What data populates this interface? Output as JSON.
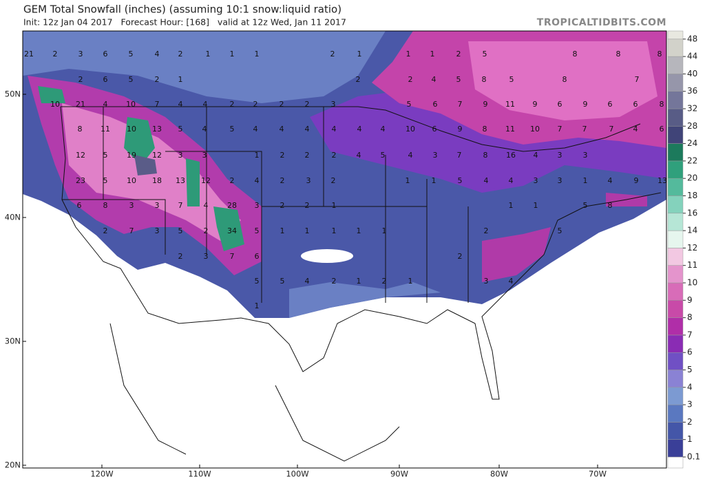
{
  "header": {
    "title": "GEM Total Snowfall (inches) (assuming 10:1 snow:liquid ratio)",
    "subtitle": "Init: 12z Jan 04 2017   Forecast Hour: [168]   valid at 12z Wed, Jan 11 2017",
    "brand": "TROPICALTIDBITS.COM"
  },
  "map": {
    "lat_labels": [
      "50N",
      "40N",
      "30N",
      "20N"
    ],
    "lon_labels": [
      "120W",
      "110W",
      "100W",
      "90W",
      "80W",
      "70W"
    ],
    "map_labels": [
      [
        21,
        2,
        3,
        6,
        5,
        4,
        2,
        1,
        1,
        1,
        2,
        1,
        1,
        1,
        2,
        5,
        8,
        8,
        8
      ],
      [
        2,
        6,
        5,
        2,
        1,
        2,
        2,
        4,
        5,
        8,
        5,
        8,
        7
      ],
      [
        10,
        21,
        4,
        10,
        7,
        4,
        4,
        2,
        2,
        2,
        2,
        3,
        5,
        6,
        7,
        9,
        11,
        9,
        6,
        9,
        6,
        6,
        8
      ],
      [
        8,
        11,
        10,
        13,
        5,
        4,
        5,
        4,
        4,
        4,
        4,
        4,
        4,
        10,
        6,
        9,
        8,
        11,
        10,
        7,
        7,
        7,
        4,
        6
      ],
      [
        12,
        5,
        19,
        12,
        3,
        3,
        1,
        2,
        2,
        2,
        4,
        5,
        4,
        3,
        7,
        8,
        16,
        4,
        3,
        3
      ],
      [
        23,
        5,
        10,
        18,
        13,
        12,
        2,
        4,
        2,
        3,
        2,
        1,
        1,
        5,
        4,
        4,
        3,
        3,
        1,
        4,
        9,
        13
      ],
      [
        6,
        8,
        3,
        3,
        7,
        4,
        28,
        3,
        2,
        2,
        1,
        1,
        1,
        5,
        8
      ],
      [
        2,
        7,
        3,
        5,
        2,
        34,
        5,
        1,
        1,
        1,
        1,
        1,
        2,
        5
      ],
      [
        2,
        3,
        7,
        6,
        2
      ],
      [
        5,
        5,
        4,
        2,
        1,
        2,
        1,
        3,
        4
      ],
      [
        1
      ]
    ]
  },
  "colorbar": {
    "ticks": [
      0.1,
      1,
      2,
      3,
      4,
      5,
      6,
      7,
      8,
      9,
      10,
      11,
      12,
      14,
      16,
      18,
      20,
      22,
      24,
      28,
      32,
      36,
      40,
      44,
      48
    ],
    "colors": [
      "#ffffff",
      "#3a3f98",
      "#4456a8",
      "#5a78c0",
      "#7c9ad2",
      "#8a82d4",
      "#7050c4",
      "#8a2cb4",
      "#b02ea8",
      "#c84aa8",
      "#d86cb8",
      "#e494cc",
      "#f2c8e2",
      "#e6f6ee",
      "#b6e6d6",
      "#84d2bc",
      "#54ba9c",
      "#30a07c",
      "#1c7a5c",
      "#404478",
      "#585c86",
      "#74769a",
      "#9696aa",
      "#b6b6bc",
      "#d2d2ca",
      "#e8e8e0"
    ]
  }
}
